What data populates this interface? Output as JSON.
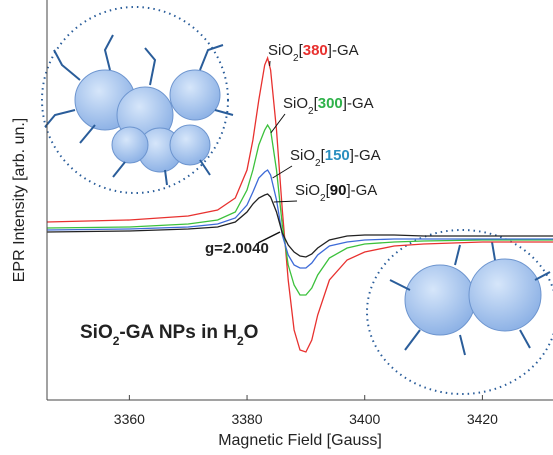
{
  "chart_data": {
    "type": "line",
    "x_label": "Magnetic Field [Gauss]",
    "y_label": "EPR Intensity [arb. un.]",
    "x": [
      3346,
      3360,
      3370,
      3375,
      3378,
      3380,
      3381,
      3382,
      3383,
      3383.5,
      3384,
      3385,
      3386,
      3387,
      3388,
      3389,
      3390,
      3391,
      3392,
      3394,
      3397,
      3400,
      3405,
      3410,
      3420,
      3432
    ],
    "xlim": [
      3346,
      3432
    ],
    "xticks": [
      3360,
      3380,
      3400,
      3420
    ],
    "ylim": [
      -170,
      230
    ],
    "series": [
      {
        "label_parts": [
          "SiO",
          "2",
          "[",
          "380",
          "]-GA"
        ],
        "color": "#e8312f",
        "number_color": "#e8312f",
        "values": [
          8,
          10,
          14,
          20,
          32,
          60,
          90,
          130,
          165,
          172,
          160,
          100,
          20,
          -50,
          -100,
          -120,
          -122,
          -110,
          -85,
          -50,
          -30,
          -22,
          -16,
          -14,
          -12,
          -12
        ]
      },
      {
        "label_parts": [
          "SiO",
          "2",
          "[",
          "300",
          "]-GA"
        ],
        "color": "#3cc13c",
        "number_color": "#2fb24a",
        "values": [
          2,
          3,
          6,
          10,
          18,
          40,
          60,
          85,
          100,
          105,
          100,
          60,
          5,
          -35,
          -55,
          -65,
          -65,
          -58,
          -45,
          -28,
          -18,
          -14,
          -12,
          -11,
          -10,
          -10
        ]
      },
      {
        "label_parts": [
          "SiO",
          "2",
          "[",
          "150",
          "]-GA"
        ],
        "color": "#3e6bd8",
        "number_color": "#2a8fc0",
        "values": [
          0,
          1,
          3,
          6,
          12,
          25,
          38,
          52,
          58,
          60,
          55,
          30,
          -5,
          -25,
          -35,
          -38,
          -38,
          -33,
          -25,
          -16,
          -12,
          -10,
          -9,
          -9,
          -9,
          -9
        ]
      },
      {
        "label_parts": [
          "SiO",
          "2",
          "[",
          "90",
          "]-GA"
        ],
        "color": "#222222",
        "number_color": "#111111",
        "values": [
          -2,
          -1,
          1,
          3,
          8,
          18,
          26,
          32,
          35,
          36,
          33,
          18,
          -3,
          -15,
          -22,
          -26,
          -27,
          -24,
          -18,
          -10,
          -6,
          -5,
          -5,
          -6,
          -6,
          -6
        ]
      }
    ],
    "annotation": "g=2.0040",
    "caption_parts": [
      "SiO",
      "2",
      "-GA NPs in H",
      "2",
      "O"
    ]
  }
}
